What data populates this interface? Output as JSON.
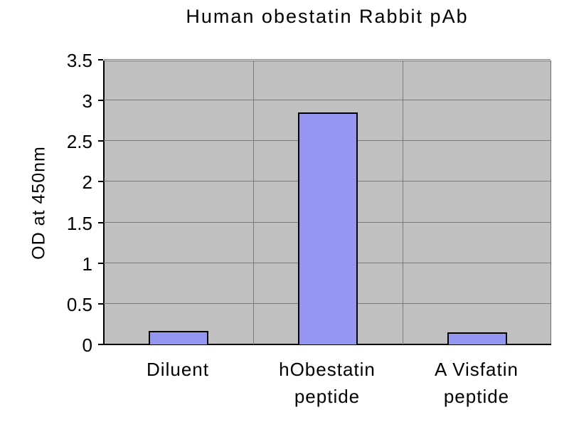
{
  "chart_data": {
    "type": "bar",
    "title": "Human obestatin Rabbit pAb",
    "ylabel": "OD at 450nm",
    "xlabel": "",
    "categories": [
      "Diluent",
      "hObestatin peptide",
      "A Visfatin peptide"
    ],
    "category_label_lines": [
      [
        "Diluent"
      ],
      [
        "hObestatin",
        "peptide"
      ],
      [
        "A Visfatin",
        "peptide"
      ]
    ],
    "values": [
      0.17,
      2.85,
      0.15
    ],
    "ylim": [
      0,
      3.5
    ],
    "yticks": [
      0,
      0.5,
      1,
      1.5,
      2,
      2.5,
      3,
      3.5
    ],
    "ytick_labels": [
      "0",
      "0.5",
      "1",
      "1.5",
      "2",
      "2.5",
      "3",
      "3.5"
    ],
    "grid": true,
    "legend": false,
    "colors": {
      "bar_fill": "#9595f2",
      "bar_border": "#000000",
      "plot_bg": "#c0c0c0",
      "gridline": "#7a7a7a",
      "axis": "#000000",
      "background": "#ffffff",
      "text": "#000000"
    }
  }
}
